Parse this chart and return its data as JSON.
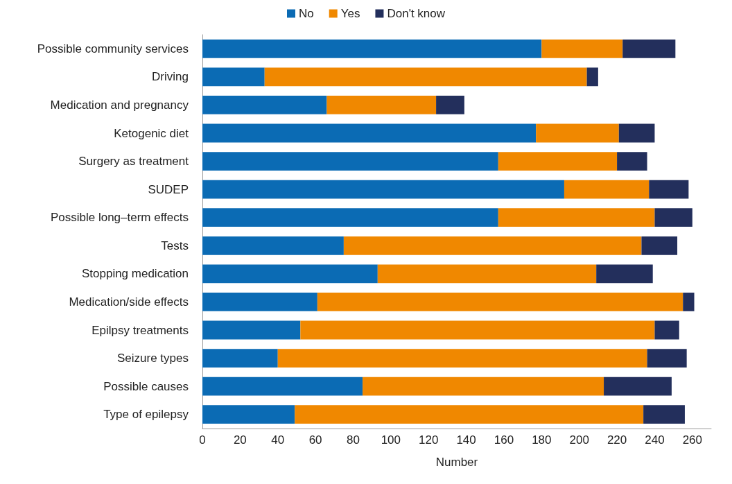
{
  "chart_data": {
    "type": "bar",
    "orientation": "horizontal",
    "stacked": true,
    "xlabel": "Number",
    "categories": [
      "Possible community services",
      "Driving",
      "Medication and pregnancy",
      "Ketogenic diet",
      "Surgery as treatment",
      "SUDEP",
      "Possible long–term effects",
      "Tests",
      "Stopping medication",
      "Medication/side effects",
      "Epilpsy treatments",
      "Seizure types",
      "Possible causes",
      "Type of epilepsy"
    ],
    "series": [
      {
        "name": "No",
        "color": "#0b6bb4",
        "values": [
          180,
          33,
          66,
          177,
          157,
          192,
          157,
          75,
          93,
          61,
          52,
          40,
          85,
          49
        ]
      },
      {
        "name": "Yes",
        "color": "#f08800",
        "values": [
          43,
          171,
          58,
          44,
          63,
          45,
          83,
          158,
          116,
          194,
          188,
          196,
          128,
          185
        ]
      },
      {
        "name": "Don't know",
        "color": "#232f5c",
        "values": [
          28,
          6,
          15,
          19,
          16,
          21,
          20,
          19,
          30,
          6,
          13,
          21,
          36,
          22
        ]
      }
    ],
    "xlim": [
      0,
      270
    ],
    "xticks": [
      0,
      20,
      40,
      60,
      80,
      100,
      120,
      140,
      160,
      180,
      200,
      220,
      240,
      260
    ],
    "grid": false,
    "legend": "top"
  }
}
